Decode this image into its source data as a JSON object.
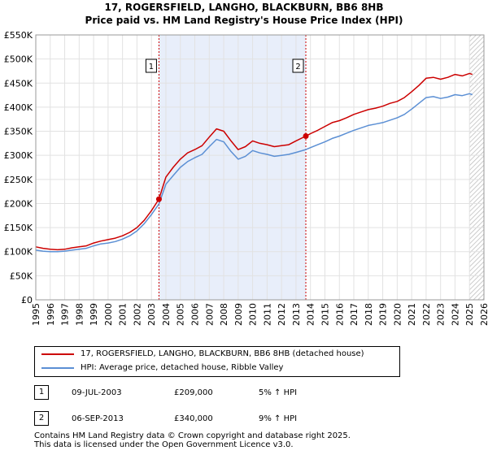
{
  "chart_data": {
    "type": "line",
    "title": "17, ROGERSFIELD, LANGHO, BLACKBURN, BB6 8HB",
    "subtitle": "Price paid vs. HM Land Registry's House Price Index (HPI)",
    "xlim": [
      1995,
      2026
    ],
    "ylim": [
      0,
      550000
    ],
    "x_ticks": [
      "1995",
      "1996",
      "1997",
      "1998",
      "1999",
      "2000",
      "2001",
      "2002",
      "2003",
      "2004",
      "2005",
      "2006",
      "2007",
      "2008",
      "2009",
      "2010",
      "2011",
      "2012",
      "2013",
      "2014",
      "2015",
      "2016",
      "2017",
      "2018",
      "2019",
      "2020",
      "2021",
      "2022",
      "2023",
      "2024",
      "2025",
      "2026"
    ],
    "y_ticks": [
      {
        "value": 0,
        "label": "£0"
      },
      {
        "value": 50000,
        "label": "£50K"
      },
      {
        "value": 100000,
        "label": "£100K"
      },
      {
        "value": 150000,
        "label": "£150K"
      },
      {
        "value": 200000,
        "label": "£200K"
      },
      {
        "value": 250000,
        "label": "£250K"
      },
      {
        "value": 300000,
        "label": "£300K"
      },
      {
        "value": 350000,
        "label": "£350K"
      },
      {
        "value": 400000,
        "label": "£400K"
      },
      {
        "value": 450000,
        "label": "£450K"
      },
      {
        "value": 500000,
        "label": "£500K"
      },
      {
        "value": 550000,
        "label": "£550K"
      }
    ],
    "shaded_region": {
      "start": 2003.52,
      "end": 2013.68
    },
    "forecast_hatch_from": 2025.0,
    "series": [
      {
        "name": "17, ROGERSFIELD, LANGHO, BLACKBURN, BB6 8HB (detached house)",
        "color": "#cc0000",
        "x": [
          1995,
          1995.5,
          1996,
          1996.5,
          1997,
          1997.5,
          1998,
          1998.5,
          1999,
          1999.5,
          2000,
          2000.5,
          2001,
          2001.5,
          2002,
          2002.5,
          2003,
          2003.52,
          2004,
          2004.5,
          2005,
          2005.5,
          2006,
          2006.5,
          2007,
          2007.5,
          2008,
          2008.5,
          2009,
          2009.5,
          2010,
          2010.5,
          2011,
          2011.5,
          2012,
          2012.5,
          2013,
          2013.68,
          2014,
          2014.5,
          2015,
          2015.5,
          2016,
          2016.5,
          2017,
          2017.5,
          2018,
          2018.5,
          2019,
          2019.5,
          2020,
          2020.5,
          2021,
          2021.5,
          2022,
          2022.5,
          2023,
          2023.5,
          2024,
          2024.5,
          2025,
          2025.2
        ],
        "values": [
          110000,
          107000,
          105000,
          104000,
          105000,
          108000,
          110000,
          112000,
          118000,
          122000,
          125000,
          128000,
          133000,
          140000,
          150000,
          165000,
          185000,
          209000,
          255000,
          275000,
          292000,
          305000,
          312000,
          320000,
          338000,
          355000,
          350000,
          330000,
          312000,
          318000,
          330000,
          325000,
          322000,
          318000,
          320000,
          322000,
          330000,
          340000,
          345000,
          352000,
          360000,
          368000,
          372000,
          378000,
          385000,
          390000,
          395000,
          398000,
          402000,
          408000,
          412000,
          420000,
          432000,
          445000,
          460000,
          462000,
          458000,
          462000,
          468000,
          465000,
          470000,
          468000
        ]
      },
      {
        "name": "HPI: Average price, detached house, Ribble Valley",
        "color": "#5b8fd4",
        "x": [
          1995,
          1995.5,
          1996,
          1996.5,
          1997,
          1997.5,
          1998,
          1998.5,
          1999,
          1999.5,
          2000,
          2000.5,
          2001,
          2001.5,
          2002,
          2002.5,
          2003,
          2003.52,
          2004,
          2004.5,
          2005,
          2005.5,
          2006,
          2006.5,
          2007,
          2007.5,
          2008,
          2008.5,
          2009,
          2009.5,
          2010,
          2010.5,
          2011,
          2011.5,
          2012,
          2012.5,
          2013,
          2013.68,
          2014,
          2014.5,
          2015,
          2015.5,
          2016,
          2016.5,
          2017,
          2017.5,
          2018,
          2018.5,
          2019,
          2019.5,
          2020,
          2020.5,
          2021,
          2021.5,
          2022,
          2022.5,
          2023,
          2023.5,
          2024,
          2024.5,
          2025,
          2025.2
        ],
        "values": [
          103000,
          101000,
          100000,
          100000,
          101000,
          103000,
          105000,
          107000,
          112000,
          116000,
          118000,
          121000,
          126000,
          133000,
          143000,
          158000,
          177000,
          199000,
          240000,
          258000,
          275000,
          287000,
          295000,
          302000,
          318000,
          333000,
          328000,
          308000,
          292000,
          298000,
          310000,
          305000,
          302000,
          298000,
          300000,
          302000,
          306000,
          312000,
          316000,
          322000,
          328000,
          335000,
          340000,
          346000,
          352000,
          357000,
          362000,
          365000,
          368000,
          373000,
          378000,
          385000,
          396000,
          408000,
          420000,
          422000,
          418000,
          421000,
          426000,
          424000,
          428000,
          426000
        ]
      }
    ],
    "markers": [
      {
        "label": "1",
        "x": 2003.52,
        "value": 209000
      },
      {
        "label": "2",
        "x": 2013.68,
        "value": 340000
      }
    ]
  },
  "transactions": [
    {
      "label": "1",
      "date": "09-JUL-2003",
      "price": "£209,000",
      "hpi": "5% ↑ HPI"
    },
    {
      "label": "2",
      "date": "06-SEP-2013",
      "price": "£340,000",
      "hpi": "9% ↑ HPI"
    }
  ],
  "footer": {
    "line1": "Contains HM Land Registry data © Crown copyright and database right 2025.",
    "line2": "This data is licensed under the Open Government Licence v3.0."
  }
}
